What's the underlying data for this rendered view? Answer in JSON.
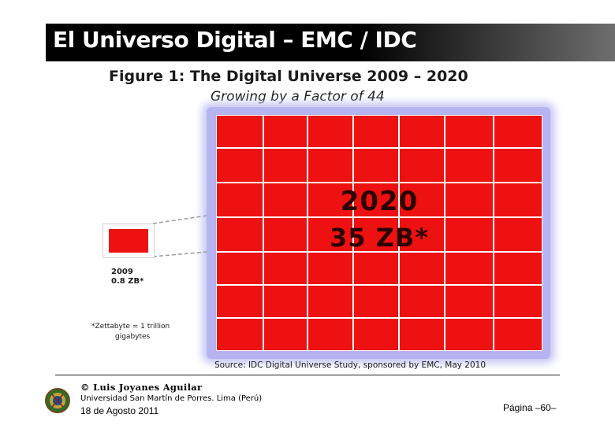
{
  "header": {
    "title": "El Universo Digital – EMC / IDC"
  },
  "figure": {
    "title": "Figure 1:  The Digital Universe 2009 – 2020",
    "subtitle": "Growing by a Factor of 44",
    "big_year": "2020",
    "big_value": "35 ZB*",
    "small_year": "2009",
    "small_value": "0.8 ZB*",
    "zettabyte_line1": "*Zettabyte = 1 trillion",
    "zettabyte_line2": "gigabytes",
    "source": "Source: IDC Digital Universe Study, sponsored by EMC, May 2010",
    "block_color": "#ee1111"
  },
  "footer": {
    "author": "© Luis Joyanes Aguilar",
    "university": "Universidad San Martín de Porres. Lima (Perú)",
    "date": "18 de Agosto 2011",
    "page": "Página –60–"
  }
}
